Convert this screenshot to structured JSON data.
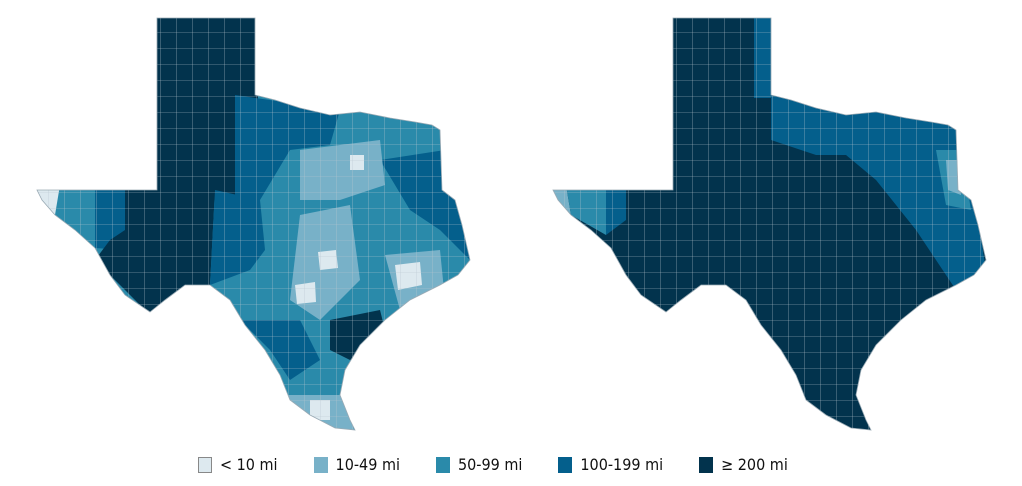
{
  "legend": [
    {
      "label": "< 10 mi",
      "color": "#dde9ef"
    },
    {
      "label": "10-49 mi",
      "color": "#78b1c8"
    },
    {
      "label": "50-99 mi",
      "color": "#2a8aaa"
    },
    {
      "label": "100-199 mi",
      "color": "#045f8c"
    },
    {
      "label": "≥ 200 mi",
      "color": "#02334d"
    }
  ]
}
